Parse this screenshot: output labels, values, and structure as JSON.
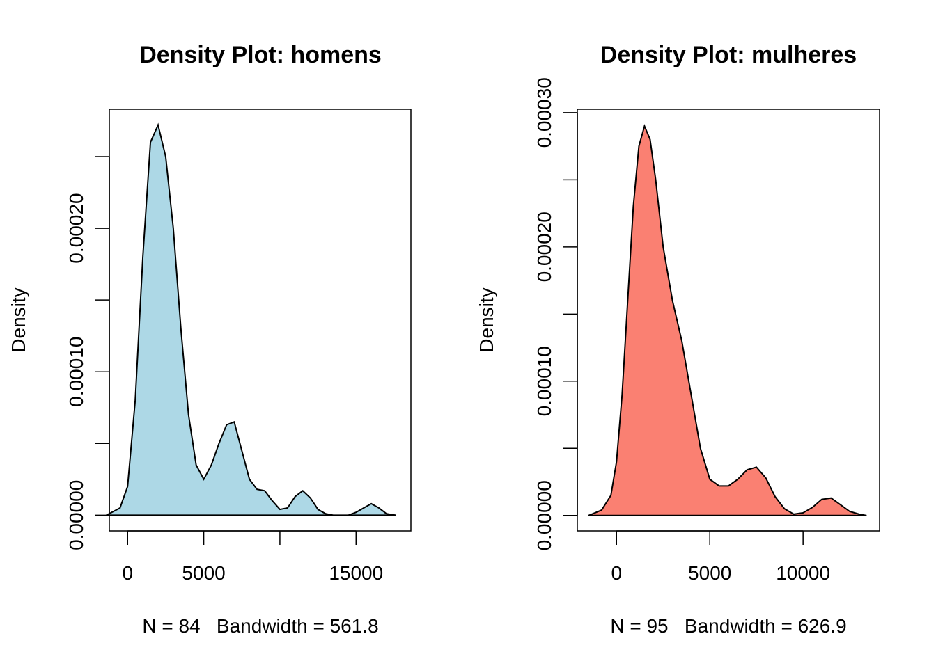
{
  "chart_data": [
    {
      "type": "area",
      "title": "Density Plot: homens",
      "xlabel": "N = 84   Bandwidth = 561.8",
      "ylabel": "Density",
      "fill_color": "#ADD8E6",
      "xlim": [
        -1200,
        18600
      ],
      "ylim": [
        -1.1e-05,
        0.000283
      ],
      "x_ticks": [
        0,
        5000,
        10000,
        15000
      ],
      "x_tick_labels": [
        "0",
        "5000",
        "",
        "15000"
      ],
      "y_ticks": [
        0,
        5e-05,
        0.0001,
        0.00015,
        0.0002,
        0.00025
      ],
      "y_tick_labels": [
        "0.00000",
        "",
        "0.00010",
        "",
        "0.00020",
        ""
      ],
      "x": [
        -1400,
        -500,
        0,
        500,
        1000,
        1500,
        2000,
        2500,
        3000,
        3500,
        4000,
        4500,
        5000,
        5500,
        6000,
        6500,
        7000,
        7500,
        8000,
        8500,
        9000,
        9500,
        10000,
        10500,
        11000,
        11500,
        12000,
        12500,
        13000,
        13500,
        14000,
        14500,
        15000,
        15500,
        16000,
        16500,
        17000,
        17600
      ],
      "y": [
        0.0,
        5e-06,
        2e-05,
        8e-05,
        0.00018,
        0.00026,
        0.000272,
        0.00025,
        0.0002,
        0.00013,
        7e-05,
        3.5e-05,
        2.5e-05,
        3.5e-05,
        5e-05,
        6.3e-05,
        6.5e-05,
        4.5e-05,
        2.5e-05,
        1.8e-05,
        1.7e-05,
        1e-05,
        4e-06,
        5e-06,
        1.3e-05,
        1.7e-05,
        1.2e-05,
        4e-06,
        1e-06,
        0.0,
        0.0,
        0.0,
        2e-06,
        5e-06,
        8e-06,
        5e-06,
        1e-06,
        0.0
      ]
    },
    {
      "type": "area",
      "title": "Density Plot: mulheres",
      "xlabel": "N = 95   Bandwidth = 626.9",
      "ylabel": "Density",
      "fill_color": "#FA8072",
      "xlim": [
        -2100,
        14100
      ],
      "ylim": [
        -1.15e-05,
        0.0003025
      ],
      "x_ticks": [
        0,
        5000,
        10000
      ],
      "x_tick_labels": [
        "0",
        "5000",
        "10000"
      ],
      "y_ticks": [
        0,
        5e-05,
        0.0001,
        0.00015,
        0.0002,
        0.00025,
        0.0003
      ],
      "y_tick_labels": [
        "0.00000",
        "",
        "0.00010",
        "",
        "0.00020",
        "",
        "0.00030"
      ],
      "x": [
        -1500,
        -800,
        -300,
        0,
        300,
        600,
        900,
        1200,
        1500,
        1800,
        2100,
        2500,
        3000,
        3500,
        4000,
        4500,
        5000,
        5500,
        6000,
        6500,
        7000,
        7500,
        8000,
        8500,
        9000,
        9500,
        10000,
        10500,
        11000,
        11500,
        12000,
        12500,
        13000,
        13400
      ],
      "y": [
        0.0,
        4e-06,
        1.5e-05,
        4e-05,
        9e-05,
        0.00016,
        0.00023,
        0.000275,
        0.00029,
        0.00028,
        0.00025,
        0.0002,
        0.00016,
        0.00013,
        9e-05,
        5e-05,
        2.7e-05,
        2.2e-05,
        2.2e-05,
        2.7e-05,
        3.4e-05,
        3.6e-05,
        2.8e-05,
        1.4e-05,
        5e-06,
        1e-06,
        2e-06,
        6e-06,
        1.2e-05,
        1.3e-05,
        8e-06,
        3e-06,
        1e-06,
        0.0
      ]
    }
  ]
}
